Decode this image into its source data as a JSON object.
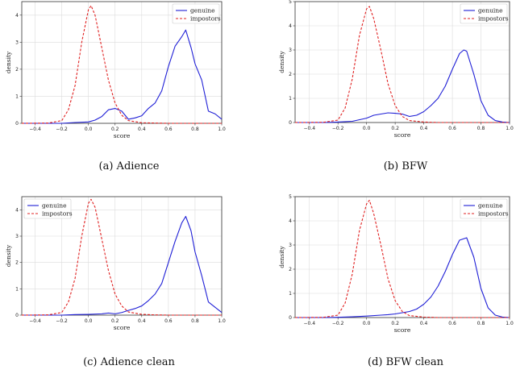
{
  "chart_data": [
    {
      "type": "line",
      "caption": "(a)  Adience",
      "xlabel": "score",
      "ylabel": "density",
      "xlim": [
        -0.5,
        1.0
      ],
      "ylim": [
        0,
        4.5
      ],
      "xticks": [
        -0.4,
        -0.2,
        0.0,
        0.2,
        0.4,
        0.6,
        0.8,
        1.0
      ],
      "yticks": [
        0,
        1,
        2,
        3,
        4
      ],
      "grid": true,
      "legend_position": "top-right",
      "series": [
        {
          "name": "genuine",
          "color": "#1f1fd6",
          "style": "solid",
          "x": [
            -0.5,
            -0.3,
            -0.2,
            -0.1,
            0.0,
            0.05,
            0.1,
            0.15,
            0.2,
            0.25,
            0.3,
            0.35,
            0.4,
            0.45,
            0.5,
            0.55,
            0.6,
            0.65,
            0.7,
            0.73,
            0.77,
            0.8,
            0.85,
            0.9,
            0.95,
            1.0
          ],
          "y": [
            0,
            0,
            0,
            0.03,
            0.05,
            0.12,
            0.25,
            0.5,
            0.55,
            0.45,
            0.15,
            0.2,
            0.28,
            0.55,
            0.75,
            1.2,
            2.1,
            2.85,
            3.2,
            3.45,
            2.8,
            2.2,
            1.6,
            0.45,
            0.35,
            0.15
          ]
        },
        {
          "name": "impostors",
          "color": "#e02020",
          "style": "dashed",
          "x": [
            -0.5,
            -0.3,
            -0.2,
            -0.15,
            -0.1,
            -0.05,
            0.0,
            0.02,
            0.05,
            0.1,
            0.15,
            0.2,
            0.25,
            0.3,
            0.4,
            0.5,
            0.6,
            0.8,
            1.0
          ],
          "y": [
            0,
            0.01,
            0.1,
            0.5,
            1.4,
            3.0,
            4.2,
            4.35,
            4.0,
            2.8,
            1.6,
            0.75,
            0.3,
            0.1,
            0.02,
            0.01,
            0,
            0,
            0
          ]
        }
      ]
    },
    {
      "type": "line",
      "caption": "(b)  BFW",
      "xlabel": "score",
      "ylabel": "density",
      "xlim": [
        -0.5,
        1.0
      ],
      "ylim": [
        0,
        5
      ],
      "xticks": [
        -0.4,
        -0.2,
        0.0,
        0.2,
        0.4,
        0.6,
        0.8,
        1.0
      ],
      "yticks": [
        0,
        1,
        2,
        3,
        4,
        5
      ],
      "grid": true,
      "legend_position": "top-right",
      "series": [
        {
          "name": "genuine",
          "color": "#1f1fd6",
          "style": "solid",
          "x": [
            -0.5,
            -0.3,
            -0.2,
            -0.1,
            0.0,
            0.05,
            0.1,
            0.15,
            0.2,
            0.25,
            0.3,
            0.35,
            0.4,
            0.45,
            0.5,
            0.55,
            0.6,
            0.65,
            0.68,
            0.7,
            0.75,
            0.8,
            0.85,
            0.9,
            0.95,
            1.0
          ],
          "y": [
            0,
            0,
            0.02,
            0.05,
            0.18,
            0.3,
            0.35,
            0.4,
            0.38,
            0.35,
            0.25,
            0.3,
            0.45,
            0.7,
            1.0,
            1.5,
            2.2,
            2.85,
            3.0,
            2.95,
            2.0,
            0.9,
            0.3,
            0.08,
            0.02,
            0
          ]
        },
        {
          "name": "impostors",
          "color": "#e02020",
          "style": "dashed",
          "x": [
            -0.5,
            -0.3,
            -0.2,
            -0.15,
            -0.1,
            -0.05,
            0.0,
            0.02,
            0.05,
            0.1,
            0.15,
            0.2,
            0.25,
            0.3,
            0.4,
            0.5,
            0.6,
            0.8,
            1.0
          ],
          "y": [
            0,
            0.01,
            0.1,
            0.6,
            1.8,
            3.6,
            4.7,
            4.8,
            4.3,
            3.0,
            1.6,
            0.7,
            0.25,
            0.08,
            0.02,
            0,
            0,
            0,
            0
          ]
        }
      ]
    },
    {
      "type": "line",
      "caption": "(c)  Adience clean",
      "xlabel": "score",
      "ylabel": "density",
      "xlim": [
        -0.5,
        1.0
      ],
      "ylim": [
        0,
        4.5
      ],
      "xticks": [
        -0.4,
        -0.2,
        0.0,
        0.2,
        0.4,
        0.6,
        0.8,
        1.0
      ],
      "yticks": [
        0,
        1,
        2,
        3,
        4
      ],
      "grid": true,
      "legend_position": "top-left",
      "series": [
        {
          "name": "genuine",
          "color": "#1f1fd6",
          "style": "solid",
          "x": [
            -0.5,
            -0.3,
            -0.2,
            -0.1,
            0.0,
            0.1,
            0.15,
            0.2,
            0.25,
            0.3,
            0.35,
            0.4,
            0.45,
            0.5,
            0.55,
            0.6,
            0.65,
            0.7,
            0.73,
            0.77,
            0.8,
            0.85,
            0.9,
            0.95,
            1.0
          ],
          "y": [
            0,
            0,
            0,
            0.02,
            0.03,
            0.05,
            0.08,
            0.05,
            0.1,
            0.18,
            0.25,
            0.35,
            0.55,
            0.8,
            1.2,
            2.0,
            2.8,
            3.5,
            3.75,
            3.2,
            2.4,
            1.5,
            0.5,
            0.3,
            0.1
          ]
        },
        {
          "name": "impostors",
          "color": "#e02020",
          "style": "dashed",
          "x": [
            -0.5,
            -0.3,
            -0.2,
            -0.15,
            -0.1,
            -0.05,
            0.0,
            0.02,
            0.05,
            0.1,
            0.15,
            0.2,
            0.25,
            0.3,
            0.4,
            0.5,
            0.6,
            0.8,
            1.0
          ],
          "y": [
            0,
            0.01,
            0.1,
            0.5,
            1.4,
            3.0,
            4.25,
            4.4,
            4.1,
            2.9,
            1.7,
            0.8,
            0.35,
            0.12,
            0.03,
            0.01,
            0,
            0,
            0
          ]
        }
      ]
    },
    {
      "type": "line",
      "caption": "(d)  BFW clean",
      "xlabel": "score",
      "ylabel": "density",
      "xlim": [
        -0.5,
        1.0
      ],
      "ylim": [
        0,
        5
      ],
      "xticks": [
        -0.4,
        -0.2,
        0.0,
        0.2,
        0.4,
        0.6,
        0.8,
        1.0
      ],
      "yticks": [
        0,
        1,
        2,
        3,
        4,
        5
      ],
      "grid": true,
      "legend_position": "top-right",
      "series": [
        {
          "name": "genuine",
          "color": "#1f1fd6",
          "style": "solid",
          "x": [
            -0.5,
            -0.3,
            -0.2,
            -0.1,
            0.0,
            0.1,
            0.15,
            0.2,
            0.25,
            0.3,
            0.35,
            0.4,
            0.45,
            0.5,
            0.55,
            0.6,
            0.65,
            0.7,
            0.75,
            0.8,
            0.85,
            0.9,
            0.95,
            1.0
          ],
          "y": [
            0,
            0,
            0.01,
            0.03,
            0.06,
            0.1,
            0.12,
            0.15,
            0.2,
            0.25,
            0.35,
            0.55,
            0.85,
            1.3,
            1.9,
            2.6,
            3.2,
            3.3,
            2.5,
            1.2,
            0.4,
            0.1,
            0.02,
            0
          ]
        },
        {
          "name": "impostors",
          "color": "#e02020",
          "style": "dashed",
          "x": [
            -0.5,
            -0.3,
            -0.2,
            -0.15,
            -0.1,
            -0.05,
            0.0,
            0.02,
            0.05,
            0.1,
            0.15,
            0.2,
            0.25,
            0.3,
            0.4,
            0.5,
            0.6,
            0.8,
            1.0
          ],
          "y": [
            0,
            0.01,
            0.1,
            0.6,
            1.8,
            3.6,
            4.7,
            4.85,
            4.3,
            3.0,
            1.6,
            0.7,
            0.25,
            0.08,
            0.02,
            0,
            0,
            0,
            0
          ]
        }
      ]
    }
  ]
}
